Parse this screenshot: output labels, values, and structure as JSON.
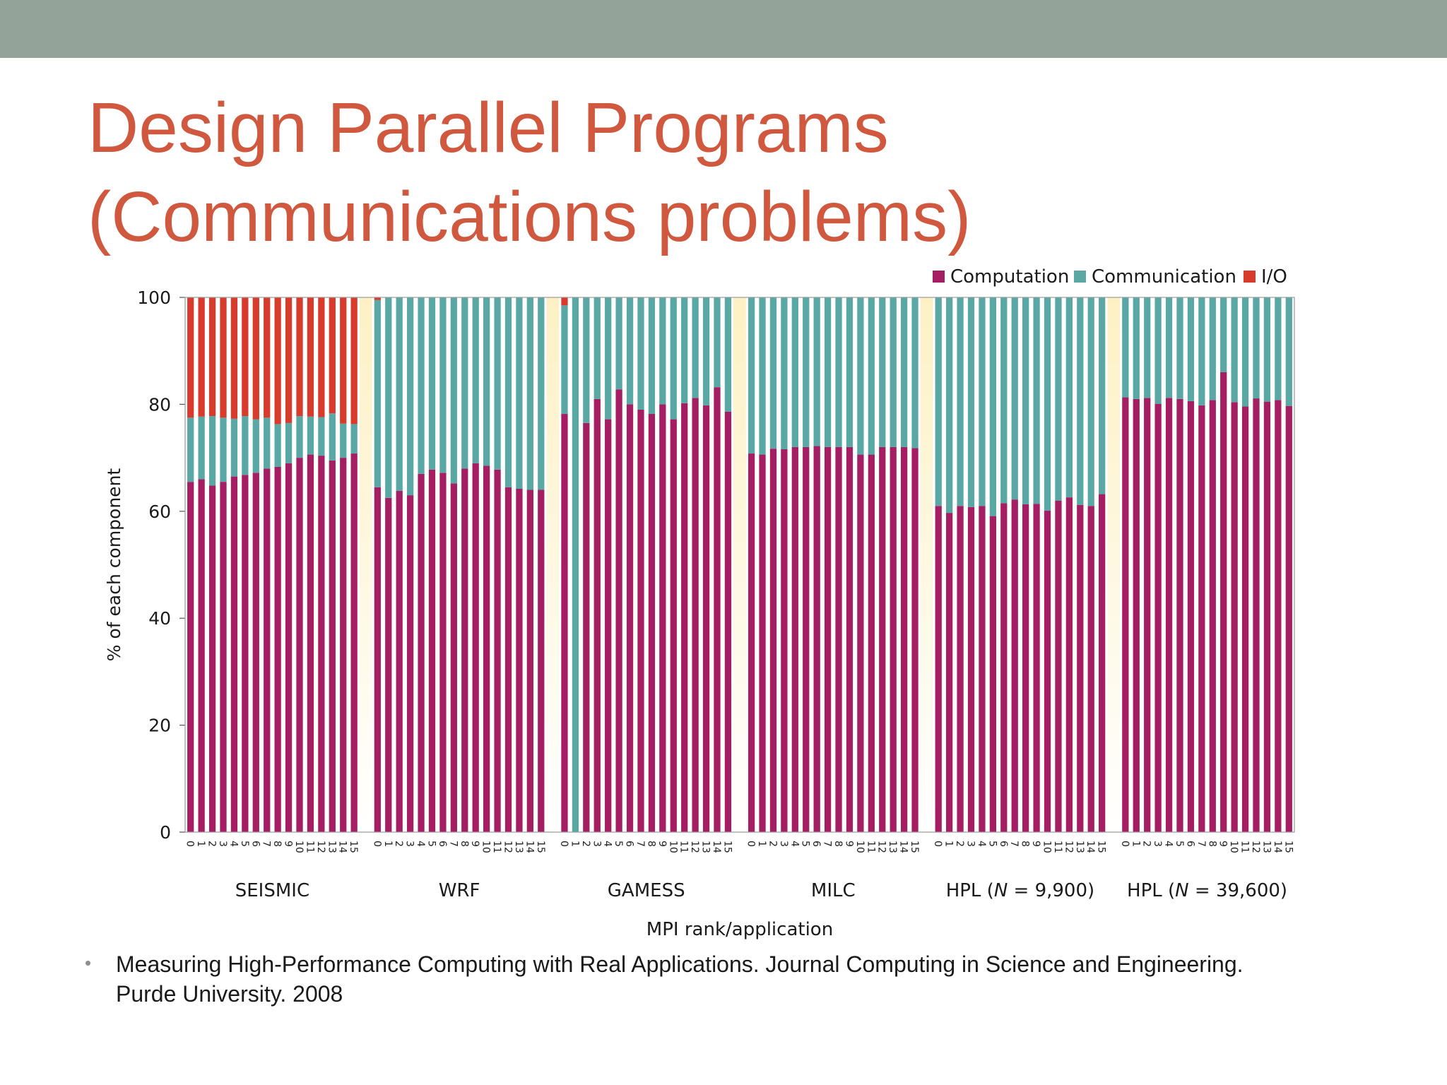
{
  "slide": {
    "title_line1": "Design Parallel Programs",
    "title_line2": "(Communications problems)",
    "reference": {
      "bullet": "•",
      "line1": "Measuring High-Performance Computing with Real Applications. Journal Computing in Science and Engineering.",
      "line2": "Purde University. 2008"
    }
  },
  "colors": {
    "band": "#93a39a",
    "title": "#d0583f",
    "computation": "#a51d62",
    "communication": "#5aa8a5",
    "io": "#d83a2c",
    "gap": "#fdf1c4"
  },
  "chart_data": {
    "type": "bar",
    "stacked": true,
    "xlabel": "MPI rank/application",
    "ylabel": "% of each component",
    "ylim": [
      0,
      100
    ],
    "yticks": [
      0,
      20,
      40,
      60,
      80,
      100
    ],
    "legend_position": "top-right",
    "legend": [
      "Computation",
      "Communication",
      "I/O"
    ],
    "rank_labels": [
      "0",
      "1",
      "2",
      "3",
      "4",
      "5",
      "6",
      "7",
      "8",
      "9",
      "10",
      "11",
      "12",
      "13",
      "14",
      "15"
    ],
    "groups": [
      {
        "label_parts": [
          "SEISMIC"
        ],
        "computation": [
          65.5,
          66,
          64.8,
          65.5,
          66.5,
          66.8,
          67.2,
          68,
          68.3,
          69,
          70,
          70.6,
          70.4,
          69.5,
          70,
          70.8
        ],
        "communication": [
          12,
          11.7,
          13,
          12,
          10.8,
          11,
          10,
          9.5,
          8,
          7.5,
          7.8,
          7.1,
          7.2,
          8.8,
          6.4,
          5.5
        ],
        "io": [
          22.5,
          22.3,
          22.2,
          22.5,
          22.7,
          22.2,
          22.8,
          22.5,
          23.7,
          23.5,
          22.2,
          22.3,
          22.4,
          21.7,
          23.6,
          23.7
        ]
      },
      {
        "label_parts": [
          "WRF"
        ],
        "computation": [
          64.5,
          62.5,
          63.8,
          63,
          67,
          67.8,
          67.2,
          65.2,
          68,
          69,
          68.5,
          67.8,
          64.5,
          64.2,
          64,
          64
        ],
        "communication": [
          35,
          37.5,
          36.2,
          37,
          33,
          32.2,
          32.8,
          34.8,
          32,
          31,
          31.5,
          32.2,
          35.5,
          35.8,
          36,
          36
        ],
        "io": [
          0.5,
          0,
          0,
          0,
          0,
          0,
          0,
          0,
          0,
          0,
          0,
          0,
          0,
          0,
          0,
          0
        ]
      },
      {
        "label_parts": [
          "GAMESS"
        ],
        "computation": [
          78.2,
          0,
          76.5,
          81,
          77.2,
          82.8,
          80,
          79,
          78.2,
          80,
          77.2,
          80.2,
          81.2,
          79.8,
          83.2,
          78.6
        ],
        "communication": [
          20.3,
          100,
          23.5,
          19,
          22.8,
          17.2,
          20,
          21,
          21.8,
          20,
          22.8,
          19.8,
          18.8,
          20.2,
          16.8,
          21.4
        ],
        "io": [
          1.5,
          0,
          0,
          0,
          0,
          0,
          0,
          0,
          0,
          0,
          0,
          0,
          0,
          0,
          0,
          0
        ]
      },
      {
        "label_parts": [
          "MILC"
        ],
        "computation": [
          70.8,
          70.6,
          71.7,
          71.6,
          72,
          72,
          72.2,
          72,
          72,
          72,
          70.6,
          70.6,
          72,
          72,
          72,
          71.8
        ],
        "communication": [
          29.2,
          29.4,
          28.3,
          28.4,
          28,
          28,
          27.8,
          28,
          28,
          28,
          29.4,
          29.4,
          28,
          28,
          28,
          28.2
        ],
        "io": [
          0,
          0,
          0,
          0,
          0,
          0,
          0,
          0,
          0,
          0,
          0,
          0,
          0,
          0,
          0,
          0
        ]
      },
      {
        "label_parts": [
          "HPL (",
          "N",
          " = 9,900)"
        ],
        "computation": [
          61,
          59.7,
          61,
          60.8,
          61,
          59.1,
          61.5,
          62.2,
          61.3,
          61.4,
          60.1,
          62,
          62.6,
          61.2,
          61,
          63.2
        ],
        "communication": [
          39,
          40.3,
          39,
          39.2,
          39,
          40.9,
          38.5,
          37.8,
          38.7,
          38.6,
          39.9,
          38,
          37.4,
          38.8,
          39,
          36.8
        ],
        "io": [
          0,
          0,
          0,
          0,
          0,
          0,
          0,
          0,
          0,
          0,
          0,
          0,
          0,
          0,
          0,
          0
        ]
      },
      {
        "label_parts": [
          "HPL (",
          "N",
          " = 39,600)"
        ],
        "computation": [
          81.3,
          81,
          81.2,
          80.1,
          81.2,
          81,
          80.6,
          79.8,
          80.8,
          86,
          80.4,
          79.6,
          81.1,
          80.5,
          80.8,
          79.7
        ],
        "communication": [
          18.7,
          19,
          18.8,
          19.9,
          18.8,
          19,
          19.4,
          20.2,
          19.2,
          14,
          19.6,
          20.4,
          18.9,
          19.5,
          19.2,
          20.3
        ],
        "io": [
          0,
          0,
          0,
          0,
          0,
          0,
          0,
          0,
          0,
          0,
          0,
          0,
          0,
          0,
          0,
          0
        ]
      }
    ]
  }
}
